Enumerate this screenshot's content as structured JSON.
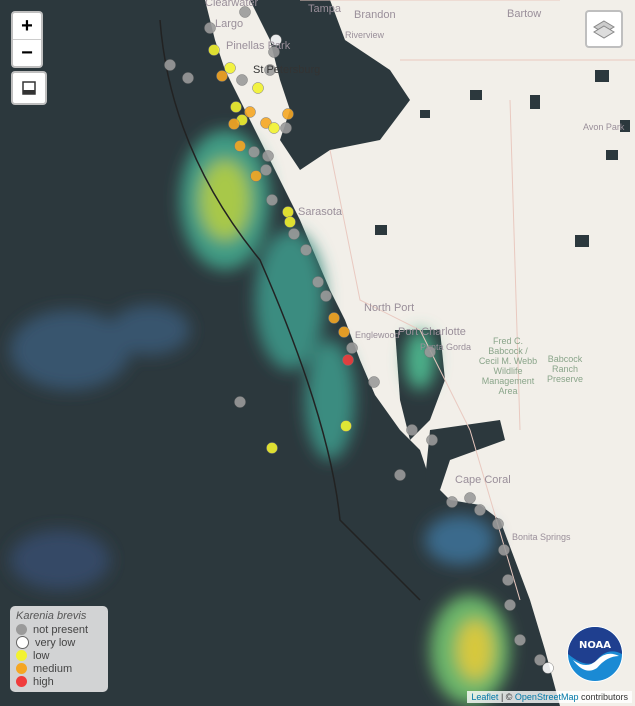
{
  "controls": {
    "zoom_in": "+",
    "zoom_out": "−",
    "layers_icon": "layers-icon",
    "fullscreen_icon": "fullscreen-icon"
  },
  "places": {
    "clearwater": "Clearwater",
    "largo": "Largo",
    "pinellas_park": "Pinellas Park",
    "st_petersburg": "St Petersburg",
    "tampa": "Tampa",
    "brandon": "Brandon",
    "riverview": "Riverview",
    "bartow": "Bartow",
    "avon_park": "Avon Park",
    "sarasota": "Sarasota",
    "north_port": "North Port",
    "port_charlotte": "Port Charlotte",
    "punta_gorda": "Punta Gorda",
    "englewood": "Englewood",
    "babcock_webb": "Fred C. Babcock / Cecil M. Webb Wildlife Management Area",
    "babcock_ranch": "Babcock Ranch Preserve",
    "cape_coral": "Cape Coral",
    "bonita_springs": "Bonita Springs"
  },
  "legend": {
    "title": "Karenia brevis",
    "items": [
      {
        "label": "not present",
        "color": "#9a9a9a"
      },
      {
        "label": "very low",
        "color": "#ffffff"
      },
      {
        "label": "low",
        "color": "#f2f230"
      },
      {
        "label": "medium",
        "color": "#f5a623"
      },
      {
        "label": "high",
        "color": "#f03c3c"
      }
    ]
  },
  "logo": "NOAA",
  "attribution": {
    "leaflet": "Leaflet",
    "sep": " | © ",
    "osm": "OpenStreetMap",
    "suffix": " contributors"
  }
}
